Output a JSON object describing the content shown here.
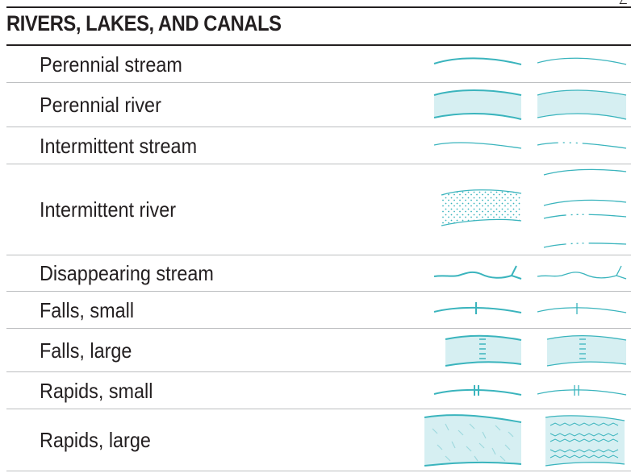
{
  "section": {
    "title": "RIVERS, LAKES, AND CANALS",
    "colors": {
      "water_line": "#3ab4bd",
      "water_fill": "#d6eff2",
      "heading_rule": "#231f20",
      "row_divider": "#bcbec0"
    },
    "rows": [
      {
        "label": "Perennial stream",
        "symbol": "perennial-stream-icon"
      },
      {
        "label": "Perennial river",
        "symbol": "perennial-river-icon"
      },
      {
        "label": "Intermittent stream",
        "symbol": "intermittent-stream-icon"
      },
      {
        "label": "Intermittent river",
        "symbol": "intermittent-river-icon"
      },
      {
        "label": "Disappearing stream",
        "symbol": "disappearing-stream-icon"
      },
      {
        "label": "Falls, small",
        "symbol": "falls-small-icon"
      },
      {
        "label": "Falls, large",
        "symbol": "falls-large-icon"
      },
      {
        "label": "Rapids, small",
        "symbol": "rapids-small-icon"
      },
      {
        "label": "Rapids, large",
        "symbol": "rapids-large-icon"
      }
    ]
  }
}
